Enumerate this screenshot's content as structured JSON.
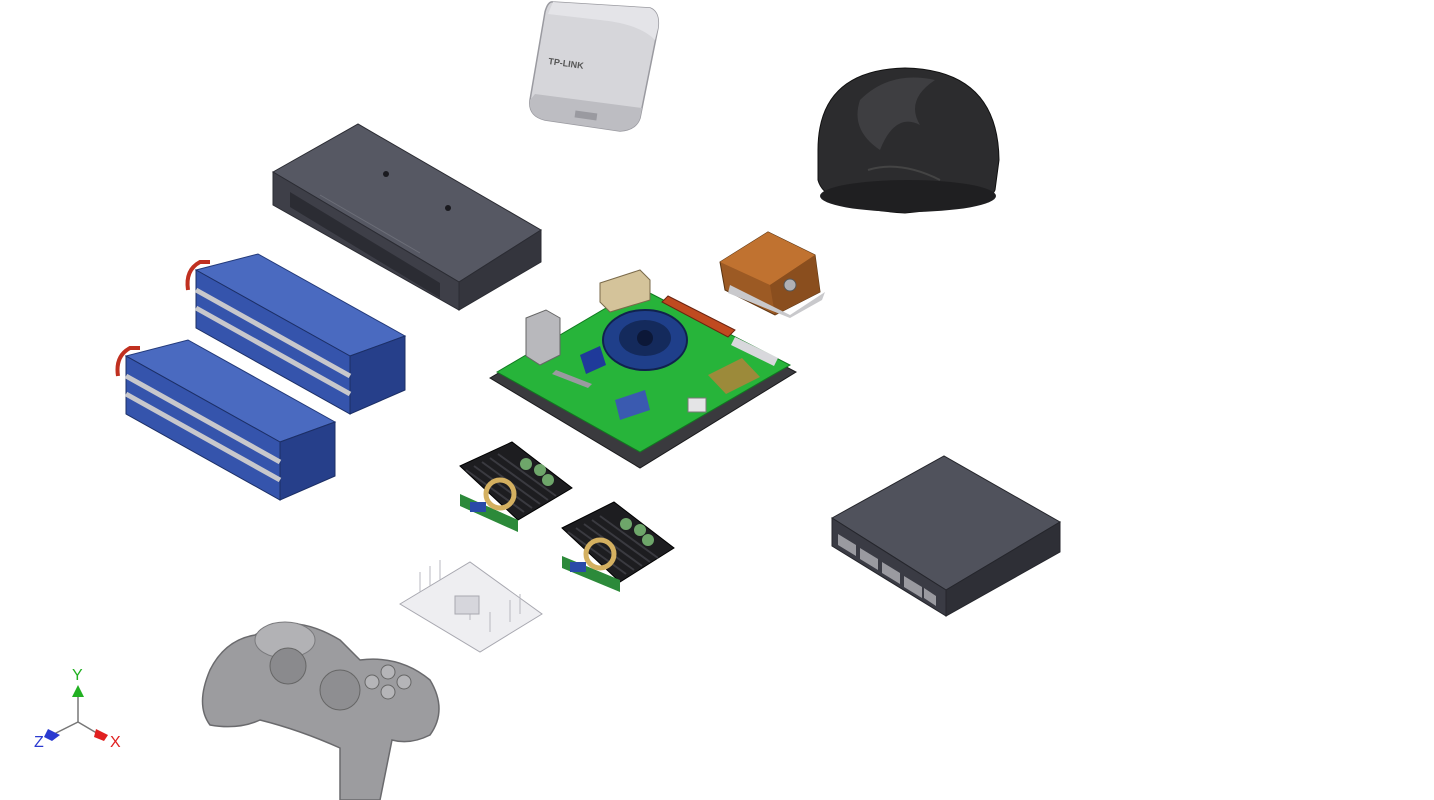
{
  "viewport": {
    "background": "#ffffff"
  },
  "router": {
    "brand": "TP-LINK",
    "color": "#d2d2d6"
  },
  "colors": {
    "battery": "#3a58b0",
    "pcb": "#2fb13a",
    "enclosure": "#4a4b55",
    "imu": "#b56a2c",
    "lidar": "#2a2a2c",
    "heatsink": "#1b1b1d",
    "gamepad": "#9e9ea0",
    "switch": "#3f4049"
  },
  "axes": {
    "x_label": "X",
    "y_label": "Y",
    "z_label": "Z",
    "x_color": "#e02020",
    "y_color": "#22b022",
    "z_color": "#2a3ad0"
  }
}
